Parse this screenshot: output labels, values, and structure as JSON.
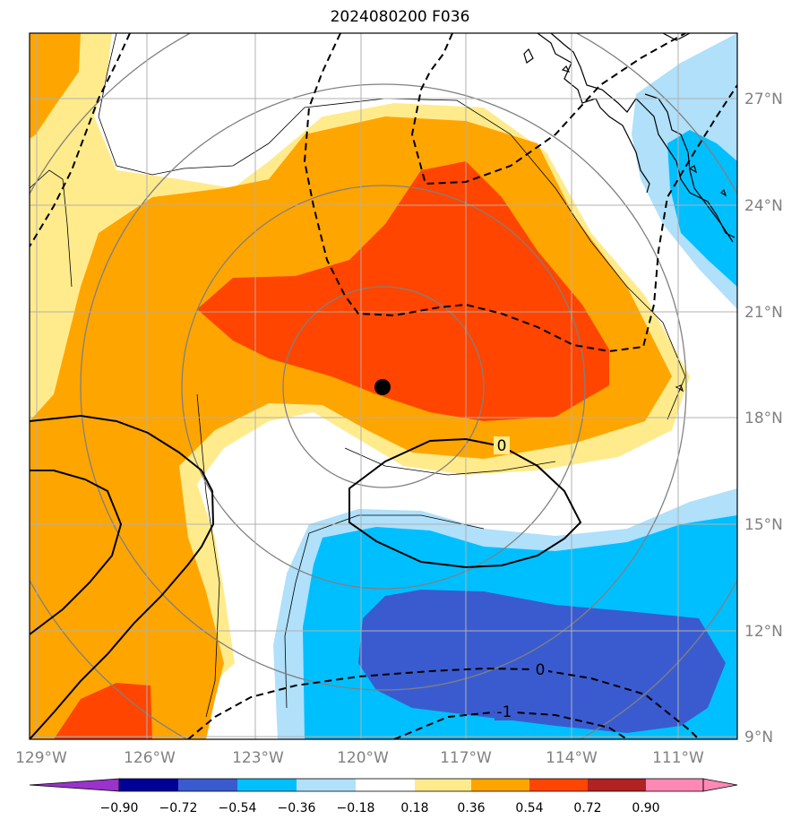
{
  "title": "2024080200 F036",
  "map": {
    "lon_range": [
      -129.2,
      -108.8
    ],
    "lat_range": [
      8.8,
      28.7
    ],
    "lon_ticks": [
      "129°W",
      "126°W",
      "123°W",
      "120°W",
      "117°W",
      "114°W",
      "111°W"
    ],
    "lat_ticks": [
      "27°N",
      "24°N",
      "21°N",
      "18°N",
      "15°N",
      "12°N",
      "9°N"
    ],
    "contour_labels": [
      "0",
      "0",
      "-1"
    ],
    "center_marker": {
      "lon": -119.5,
      "lat": 18.9
    }
  },
  "colorbar": {
    "ticks": [
      "−0.90",
      "−0.72",
      "−0.54",
      "−0.36",
      "−0.18",
      "0.18",
      "0.36",
      "0.54",
      "0.72",
      "0.90"
    ],
    "colors": [
      "#9933cc",
      "#000099",
      "#3a5bd0",
      "#00bfff",
      "#b0e0fa",
      "#ffffff",
      "#ffeb8c",
      "#ffa500",
      "#ff4500",
      "#b22222",
      "#ff88b4",
      "#9933cc",
      "#ff88b4"
    ]
  }
}
